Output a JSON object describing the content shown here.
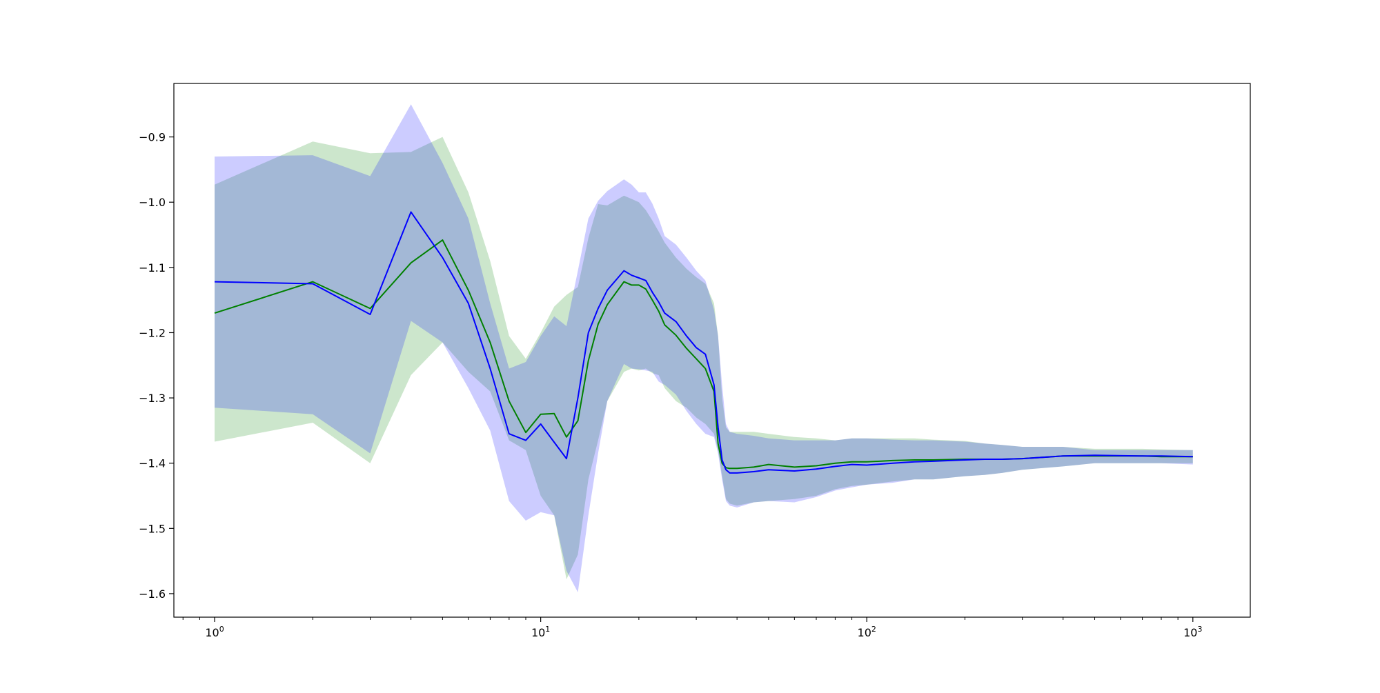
{
  "chart_data": {
    "type": "line",
    "title": "",
    "xlabel": "",
    "ylabel": "",
    "xscale": "log",
    "xlim": [
      0.75,
      1500
    ],
    "ylim": [
      -1.636,
      -0.818
    ],
    "grid": false,
    "legend": "none",
    "x_ticks": [
      {
        "value": 1,
        "base": "10",
        "exp": "0"
      },
      {
        "value": 10,
        "base": "10",
        "exp": "1"
      },
      {
        "value": 100,
        "base": "10",
        "exp": "2"
      },
      {
        "value": 1000,
        "base": "10",
        "exp": "3"
      }
    ],
    "y_ticks": [
      {
        "value": -0.9,
        "label": "−0.9"
      },
      {
        "value": -1.0,
        "label": "−1.0"
      },
      {
        "value": -1.1,
        "label": "−1.1"
      },
      {
        "value": -1.2,
        "label": "−1.2"
      },
      {
        "value": -1.3,
        "label": "−1.3"
      },
      {
        "value": -1.4,
        "label": "−1.4"
      },
      {
        "value": -1.5,
        "label": "−1.5"
      },
      {
        "value": -1.6,
        "label": "−1.6"
      }
    ],
    "series": [
      {
        "color": "#008000",
        "band_color": "#008000",
        "band_opacity": 0.2,
        "x": [
          1,
          2,
          3,
          4,
          5,
          6,
          7,
          8,
          9,
          10,
          11,
          12,
          13,
          14,
          15,
          16,
          18,
          19,
          20,
          21,
          22,
          23,
          24,
          26,
          28,
          30,
          32,
          34,
          35,
          36,
          37,
          38,
          40,
          45,
          50,
          60,
          70,
          80,
          90,
          100,
          120,
          140,
          160,
          200,
          230,
          260,
          300,
          400,
          500,
          700,
          800,
          1000
        ],
        "y": [
          -1.17,
          -1.122,
          -1.163,
          -1.093,
          -1.058,
          -1.135,
          -1.215,
          -1.305,
          -1.353,
          -1.325,
          -1.324,
          -1.36,
          -1.335,
          -1.243,
          -1.187,
          -1.157,
          -1.122,
          -1.127,
          -1.127,
          -1.133,
          -1.15,
          -1.167,
          -1.188,
          -1.204,
          -1.224,
          -1.24,
          -1.255,
          -1.29,
          -1.37,
          -1.4,
          -1.407,
          -1.408,
          -1.408,
          -1.406,
          -1.402,
          -1.406,
          -1.404,
          -1.4,
          -1.398,
          -1.398,
          -1.396,
          -1.395,
          -1.395,
          -1.394,
          -1.394,
          -1.394,
          -1.393,
          -1.389,
          -1.389,
          -1.389,
          -1.39,
          -1.39
        ],
        "lower": [
          -1.367,
          -1.338,
          -1.4,
          -1.265,
          -1.215,
          -1.26,
          -1.29,
          -1.365,
          -1.38,
          -1.45,
          -1.48,
          -1.578,
          -1.54,
          -1.425,
          -1.365,
          -1.305,
          -1.26,
          -1.255,
          -1.258,
          -1.255,
          -1.262,
          -1.265,
          -1.285,
          -1.305,
          -1.315,
          -1.33,
          -1.34,
          -1.355,
          -1.38,
          -1.42,
          -1.455,
          -1.462,
          -1.465,
          -1.46,
          -1.458,
          -1.455,
          -1.45,
          -1.44,
          -1.435,
          -1.433,
          -1.428,
          -1.425,
          -1.425,
          -1.42,
          -1.418,
          -1.415,
          -1.41,
          -1.405,
          -1.4,
          -1.4,
          -1.4,
          -1.4
        ],
        "upper": [
          -0.973,
          -0.907,
          -0.925,
          -0.923,
          -0.9,
          -0.985,
          -1.09,
          -1.205,
          -1.24,
          -1.2,
          -1.16,
          -1.142,
          -1.13,
          -1.055,
          -1.003,
          -1.005,
          -0.99,
          -0.995,
          -1.0,
          -1.012,
          -1.028,
          -1.045,
          -1.062,
          -1.085,
          -1.102,
          -1.115,
          -1.125,
          -1.155,
          -1.205,
          -1.3,
          -1.345,
          -1.352,
          -1.352,
          -1.352,
          -1.355,
          -1.36,
          -1.362,
          -1.365,
          -1.362,
          -1.362,
          -1.362,
          -1.362,
          -1.364,
          -1.366,
          -1.37,
          -1.372,
          -1.375,
          -1.375,
          -1.378,
          -1.378,
          -1.379,
          -1.38
        ]
      },
      {
        "color": "#0000ff",
        "band_color": "#0000ff",
        "band_opacity": 0.2,
        "x": [
          1,
          2,
          3,
          4,
          5,
          6,
          7,
          8,
          9,
          10,
          11,
          12,
          13,
          14,
          15,
          16,
          18,
          19,
          20,
          21,
          22,
          23,
          24,
          26,
          28,
          30,
          32,
          34,
          35,
          36,
          37,
          38,
          40,
          45,
          50,
          60,
          70,
          80,
          90,
          100,
          120,
          140,
          160,
          200,
          230,
          260,
          300,
          400,
          500,
          700,
          800,
          1000
        ],
        "y": [
          -1.122,
          -1.125,
          -1.172,
          -1.015,
          -1.085,
          -1.155,
          -1.255,
          -1.355,
          -1.365,
          -1.34,
          -1.368,
          -1.393,
          -1.3,
          -1.2,
          -1.163,
          -1.135,
          -1.105,
          -1.112,
          -1.116,
          -1.12,
          -1.138,
          -1.153,
          -1.17,
          -1.183,
          -1.205,
          -1.223,
          -1.233,
          -1.28,
          -1.345,
          -1.395,
          -1.41,
          -1.415,
          -1.415,
          -1.413,
          -1.41,
          -1.412,
          -1.409,
          -1.405,
          -1.402,
          -1.403,
          -1.4,
          -1.398,
          -1.397,
          -1.395,
          -1.394,
          -1.394,
          -1.393,
          -1.389,
          -1.388,
          -1.389,
          -1.389,
          -1.39
        ],
        "lower": [
          -1.315,
          -1.325,
          -1.385,
          -1.182,
          -1.215,
          -1.285,
          -1.35,
          -1.458,
          -1.488,
          -1.475,
          -1.48,
          -1.565,
          -1.598,
          -1.48,
          -1.385,
          -1.305,
          -1.248,
          -1.255,
          -1.256,
          -1.258,
          -1.26,
          -1.275,
          -1.28,
          -1.295,
          -1.32,
          -1.34,
          -1.355,
          -1.36,
          -1.385,
          -1.425,
          -1.458,
          -1.465,
          -1.468,
          -1.46,
          -1.458,
          -1.46,
          -1.452,
          -1.442,
          -1.437,
          -1.433,
          -1.43,
          -1.425,
          -1.425,
          -1.42,
          -1.418,
          -1.415,
          -1.41,
          -1.405,
          -1.4,
          -1.4,
          -1.4,
          -1.402
        ],
        "upper": [
          -0.93,
          -0.928,
          -0.96,
          -0.85,
          -0.94,
          -1.025,
          -1.155,
          -1.255,
          -1.245,
          -1.205,
          -1.175,
          -1.19,
          -1.105,
          -1.025,
          -0.998,
          -0.983,
          -0.965,
          -0.973,
          -0.985,
          -0.985,
          -1.002,
          -1.025,
          -1.052,
          -1.065,
          -1.085,
          -1.105,
          -1.12,
          -1.165,
          -1.205,
          -1.28,
          -1.34,
          -1.352,
          -1.355,
          -1.358,
          -1.362,
          -1.365,
          -1.365,
          -1.365,
          -1.362,
          -1.362,
          -1.364,
          -1.365,
          -1.365,
          -1.367,
          -1.37,
          -1.372,
          -1.375,
          -1.375,
          -1.38,
          -1.38,
          -1.38,
          -1.38
        ]
      }
    ]
  }
}
